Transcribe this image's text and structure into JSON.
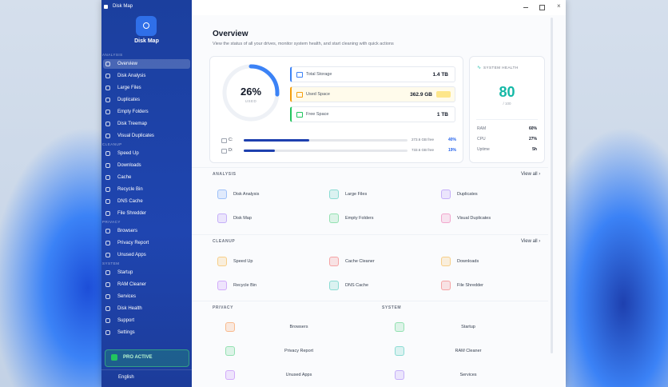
{
  "window": {
    "title": "Disk Map"
  },
  "sidebar": {
    "app_name": "Disk Map",
    "sections": [
      {
        "label": "ANALYSIS",
        "items": [
          "Overview",
          "Disk Analysis",
          "Large Files",
          "Duplicates",
          "Empty Folders",
          "Disk Treemap",
          "Visual Duplicates"
        ]
      },
      {
        "label": "CLEANUP",
        "items": [
          "Speed Up",
          "Downloads",
          "Cache",
          "Recycle Bin",
          "DNS Cache",
          "File Shredder"
        ]
      },
      {
        "label": "PRIVACY",
        "items": [
          "Browsers",
          "Privacy Report",
          "Unused Apps"
        ]
      },
      {
        "label": "SYSTEM",
        "items": [
          "Startup",
          "RAM Cleaner",
          "Services",
          "Disk Health",
          "Support",
          "Settings"
        ]
      }
    ],
    "pro_badge": "PRO ACTIVE",
    "language": "English"
  },
  "overview": {
    "title": "Overview",
    "subtitle": "View the status of all your drives, monitor system health, and start cleaning with quick actions",
    "usage": {
      "percent": 26,
      "percent_label": "26%",
      "caption": "USED"
    },
    "storage": [
      {
        "label": "Total Storage",
        "value": "1.4 TB",
        "color": "#3b82f6"
      },
      {
        "label": "Used Space",
        "value": "362.9 GB",
        "color": "#f59e0b"
      },
      {
        "label": "Free Space",
        "value": "1 TB",
        "color": "#22c55e"
      }
    ],
    "drives": [
      {
        "name": "C:",
        "free": "273.6 GB free",
        "percent": 40,
        "percent_label": "40%"
      },
      {
        "name": "D:",
        "free": "733.6 GB free",
        "percent": 19,
        "percent_label": "19%"
      }
    ]
  },
  "health": {
    "title": "SYSTEM HEALTH",
    "score": "80",
    "scale": "/ 100",
    "stats": [
      {
        "label": "RAM",
        "value": "60%"
      },
      {
        "label": "CPU",
        "value": "27%"
      },
      {
        "label": "Uptime",
        "value": "5h"
      }
    ]
  },
  "sections": [
    {
      "label": "ANALYSIS",
      "link": "View all ›",
      "items": [
        {
          "label": "Disk Analysis",
          "color": "#3b82f6"
        },
        {
          "label": "Large Files",
          "color": "#14b8a6"
        },
        {
          "label": "Duplicates",
          "color": "#8b5cf6"
        },
        {
          "label": "Disk Map",
          "color": "#8b5cf6"
        },
        {
          "label": "Empty Folders",
          "color": "#22c55e"
        },
        {
          "label": "Visual Duplicates",
          "color": "#ec4899"
        }
      ]
    },
    {
      "label": "CLEANUP",
      "link": "View all ›",
      "items": [
        {
          "label": "Speed Up",
          "color": "#f59e0b"
        },
        {
          "label": "Cache Cleaner",
          "color": "#ef4444"
        },
        {
          "label": "Downloads",
          "color": "#f59e0b"
        },
        {
          "label": "Recycle Bin",
          "color": "#a855f7"
        },
        {
          "label": "DNS Cache",
          "color": "#14b8a6"
        },
        {
          "label": "File Shredder",
          "color": "#ef4444"
        }
      ]
    },
    {
      "label": "PRIVACY",
      "items": [
        {
          "label": "Browsers",
          "color": "#f97316"
        },
        {
          "label": "Privacy Report",
          "color": "#22c55e"
        },
        {
          "label": "Unused Apps",
          "color": "#a855f7"
        }
      ]
    },
    {
      "label": "SYSTEM",
      "items": [
        {
          "label": "Startup",
          "color": "#22c55e"
        },
        {
          "label": "RAM Cleaner",
          "color": "#14b8a6"
        },
        {
          "label": "Services",
          "color": "#8b5cf6"
        }
      ]
    }
  ]
}
